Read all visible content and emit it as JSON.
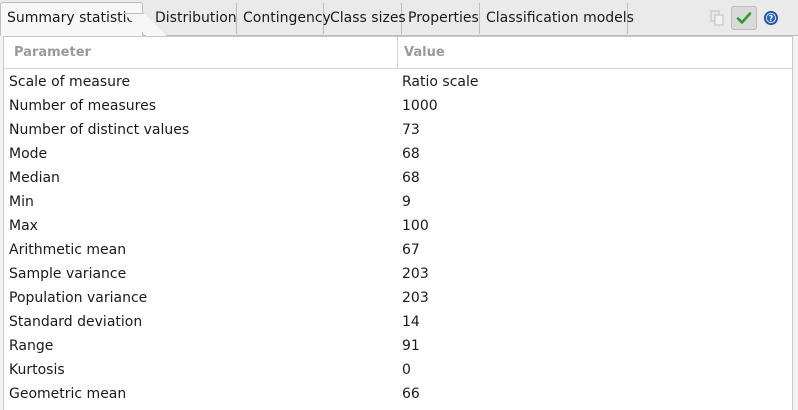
{
  "tabs": [
    {
      "label": "Summary statistics",
      "active": true
    },
    {
      "label": "Distribution",
      "active": false
    },
    {
      "label": "Contingency",
      "active": false
    },
    {
      "label": "Class sizes",
      "active": false
    },
    {
      "label": "Properties",
      "active": false
    },
    {
      "label": "Classification models",
      "active": false
    }
  ],
  "toolbar": {
    "copy_icon": "copy-icon",
    "apply_icon": "checkmark-icon",
    "help_icon": "help-icon"
  },
  "table": {
    "columns": [
      "Parameter",
      "Value"
    ],
    "rows": [
      {
        "param": "Scale of measure",
        "value": "Ratio scale"
      },
      {
        "param": "Number of measures",
        "value": "1000"
      },
      {
        "param": "Number of distinct values",
        "value": "73"
      },
      {
        "param": "Mode",
        "value": "68"
      },
      {
        "param": "Median",
        "value": "68"
      },
      {
        "param": "Min",
        "value": "9"
      },
      {
        "param": "Max",
        "value": "100"
      },
      {
        "param": "Arithmetic mean",
        "value": "67"
      },
      {
        "param": "Sample variance",
        "value": "203"
      },
      {
        "param": "Population variance",
        "value": "203"
      },
      {
        "param": "Standard deviation",
        "value": "14"
      },
      {
        "param": "Range",
        "value": "91"
      },
      {
        "param": "Kurtosis",
        "value": "0"
      },
      {
        "param": "Geometric mean",
        "value": "66"
      }
    ]
  },
  "colors": {
    "apply_green": "#2e9b2e",
    "help_blue": "#2a63c9"
  }
}
